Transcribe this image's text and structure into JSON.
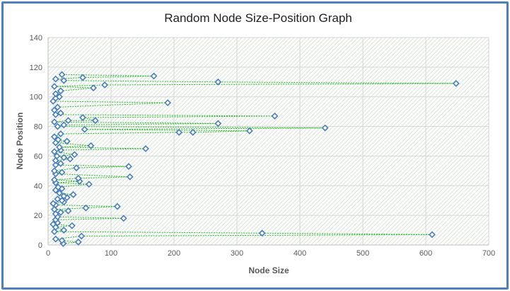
{
  "chart_data": {
    "type": "scatter",
    "title": "Random Node Size-Position Graph",
    "xlabel": "Node Size",
    "ylabel": "Node Position",
    "xlim": [
      0,
      700
    ],
    "ylim": [
      0,
      140
    ],
    "x_ticks": [
      0,
      100,
      200,
      300,
      400,
      500,
      600,
      700
    ],
    "y_ticks": [
      0,
      20,
      40,
      60,
      80,
      100,
      120,
      140
    ],
    "grid": true,
    "legend": "none",
    "colors": {
      "marker_stroke": "#4a7fbf",
      "marker_fill": "#ffffff",
      "connector": "#2fb830",
      "hatch": "#c8d8c8",
      "frame": "#4f7fc0"
    },
    "series": [
      {
        "values": [
          [
            24,
            1
          ],
          [
            48,
            2
          ],
          [
            22,
            3
          ],
          [
            12,
            4
          ],
          [
            53,
            6
          ],
          [
            610,
            7
          ],
          [
            340,
            8
          ],
          [
            10,
            9
          ],
          [
            25,
            10
          ],
          [
            12,
            12
          ],
          [
            38,
            13
          ],
          [
            8,
            14
          ],
          [
            15,
            15
          ],
          [
            12,
            17
          ],
          [
            120,
            18
          ],
          [
            15,
            19
          ],
          [
            12,
            21
          ],
          [
            20,
            22
          ],
          [
            32,
            23
          ],
          [
            10,
            24
          ],
          [
            60,
            25
          ],
          [
            110,
            26
          ],
          [
            12,
            27
          ],
          [
            8,
            28
          ],
          [
            25,
            29
          ],
          [
            22,
            30
          ],
          [
            15,
            31
          ],
          [
            30,
            32
          ],
          [
            25,
            33
          ],
          [
            40,
            34
          ],
          [
            18,
            35
          ],
          [
            12,
            37
          ],
          [
            22,
            38
          ],
          [
            16,
            39
          ],
          [
            65,
            41
          ],
          [
            12,
            42
          ],
          [
            50,
            43
          ],
          [
            10,
            44
          ],
          [
            48,
            45
          ],
          [
            130,
            46
          ],
          [
            12,
            48
          ],
          [
            22,
            49
          ],
          [
            10,
            50
          ],
          [
            45,
            52
          ],
          [
            128,
            53
          ],
          [
            12,
            54
          ],
          [
            20,
            55
          ],
          [
            12,
            57
          ],
          [
            35,
            58
          ],
          [
            25,
            59
          ],
          [
            14,
            60
          ],
          [
            42,
            61
          ],
          [
            10,
            63
          ],
          [
            20,
            64
          ],
          [
            155,
            65
          ],
          [
            18,
            66
          ],
          [
            68,
            67
          ],
          [
            12,
            69
          ],
          [
            30,
            70
          ],
          [
            16,
            71
          ],
          [
            10,
            73
          ],
          [
            20,
            75
          ],
          [
            208,
            76
          ],
          [
            230,
            76
          ],
          [
            320,
            77
          ],
          [
            58,
            78
          ],
          [
            440,
            79
          ],
          [
            15,
            80
          ],
          [
            25,
            81
          ],
          [
            270,
            82
          ],
          [
            10,
            83
          ],
          [
            32,
            84
          ],
          [
            75,
            84
          ],
          [
            55,
            86
          ],
          [
            360,
            87
          ],
          [
            12,
            88
          ],
          [
            20,
            89
          ],
          [
            10,
            91
          ],
          [
            15,
            93
          ],
          [
            190,
            96
          ],
          [
            8,
            97
          ],
          [
            12,
            99
          ],
          [
            18,
            100
          ],
          [
            12,
            102
          ],
          [
            20,
            104
          ],
          [
            72,
            106
          ],
          [
            10,
            107
          ],
          [
            90,
            108
          ],
          [
            648,
            109
          ],
          [
            270,
            110
          ],
          [
            25,
            111
          ],
          [
            12,
            112
          ],
          [
            55,
            113
          ],
          [
            168,
            114
          ],
          [
            22,
            115
          ]
        ]
      }
    ]
  }
}
